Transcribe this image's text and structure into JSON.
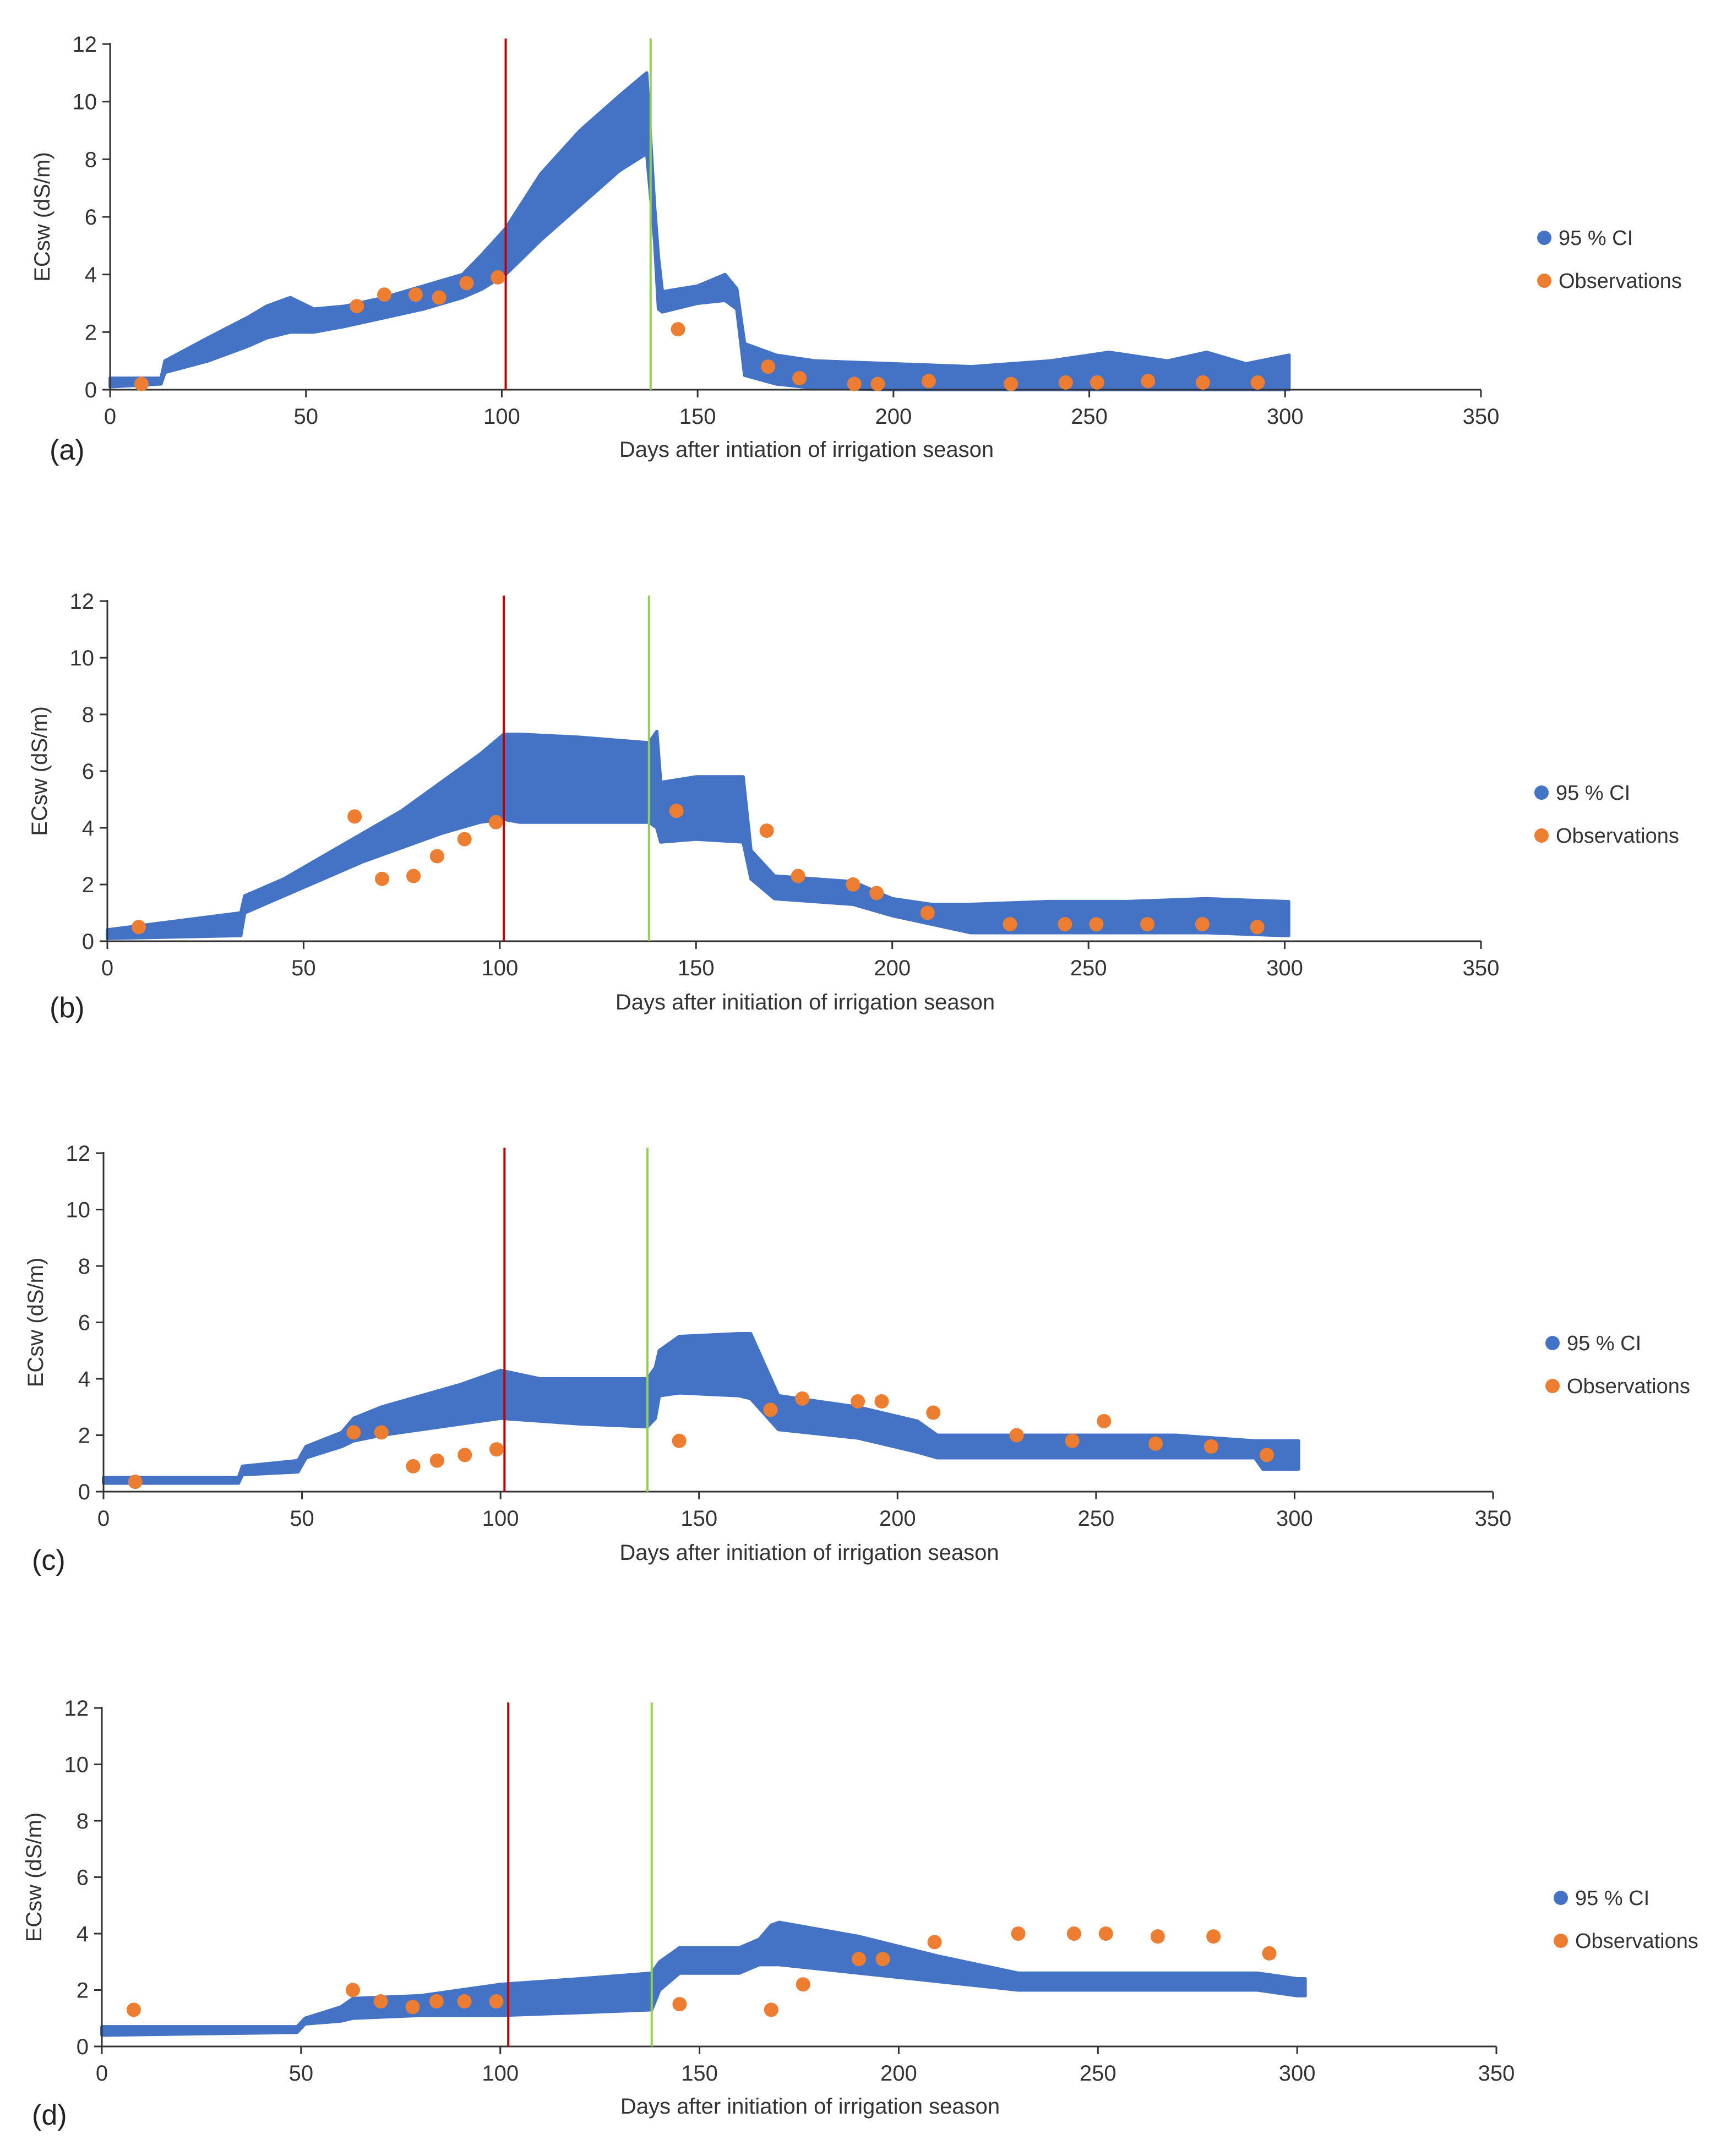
{
  "figure": {
    "x_axis_label": "Days after intiation of irrigation season",
    "x_axis_label_alt": "Days after initiation of irrigation season",
    "y_axis_label": "ECsw (dS/m)",
    "legend": {
      "ci": "95 % CI",
      "obs": "Observations"
    },
    "colors": {
      "band": "#4472C4",
      "obs": "#ED7D31",
      "red_line": "#C00000",
      "green_line": "#92D050",
      "axis": "#333333"
    }
  },
  "chart_data": [
    {
      "type": "area",
      "panel_label": "(a)",
      "xlabel": "Days after intiation of irrigation season",
      "ylabel": "ECsw (dS/m)",
      "xlim": [
        0,
        350
      ],
      "ylim": [
        0,
        12
      ],
      "xticks": [
        "0",
        "50",
        "100",
        "150",
        "200",
        "250",
        "300",
        "350"
      ],
      "yticks": [
        "0",
        "2",
        "4",
        "6",
        "8",
        "10",
        "12"
      ],
      "vlines": {
        "red": 101,
        "green": 138
      },
      "series": [
        {
          "name": "95 % CI",
          "x": [
            0,
            13,
            14,
            25,
            35,
            40,
            46,
            52,
            60,
            70,
            80,
            90,
            95,
            101,
            110,
            120,
            130,
            137,
            139,
            140,
            141,
            150,
            157,
            160,
            162,
            170,
            180,
            200,
            220,
            240,
            255,
            270,
            280,
            290,
            301
          ],
          "lower": [
            0.1,
            0.2,
            0.6,
            1.0,
            1.5,
            1.8,
            2.0,
            2.0,
            2.2,
            2.5,
            2.8,
            3.2,
            3.5,
            4.0,
            5.2,
            6.4,
            7.6,
            8.2,
            5.2,
            2.8,
            2.7,
            3.0,
            3.1,
            2.8,
            0.5,
            0.2,
            0.05,
            0.0,
            0.0,
            0.0,
            0.0,
            0.0,
            0.0,
            0.0,
            0.0
          ],
          "upper": [
            0.4,
            0.4,
            1.0,
            1.8,
            2.5,
            2.9,
            3.2,
            2.8,
            2.9,
            3.2,
            3.6,
            4.0,
            4.7,
            5.6,
            7.5,
            9.0,
            10.2,
            11.0,
            6.4,
            4.6,
            3.4,
            3.6,
            4.0,
            3.5,
            1.6,
            1.2,
            1.0,
            0.9,
            0.8,
            1.0,
            1.3,
            1.0,
            1.3,
            0.9,
            1.2
          ]
        },
        {
          "name": "Observations",
          "x": [
            8,
            63,
            70,
            78,
            84,
            91,
            99,
            145,
            168,
            176,
            190,
            196,
            209,
            230,
            244,
            252,
            265,
            279,
            293
          ],
          "y": [
            0.2,
            2.9,
            3.3,
            3.3,
            3.2,
            3.7,
            3.9,
            2.1,
            0.8,
            0.4,
            0.2,
            0.2,
            0.3,
            0.2,
            0.25,
            0.25,
            0.3,
            0.25,
            0.25
          ]
        }
      ]
    },
    {
      "type": "area",
      "panel_label": "(b)",
      "xlabel": "Days after initiation of irrigation season",
      "ylabel": "ECsw (dS/m)",
      "xlim": [
        0,
        350
      ],
      "ylim": [
        0,
        12
      ],
      "xticks": [
        "0",
        "50",
        "100",
        "150",
        "200",
        "250",
        "300",
        "350"
      ],
      "yticks": [
        "0",
        "2",
        "4",
        "6",
        "8",
        "10",
        "12"
      ],
      "vlines": {
        "red": 101,
        "green": 138
      },
      "series": [
        {
          "name": "95 % CI",
          "x": [
            0,
            34,
            35,
            45,
            55,
            65,
            75,
            85,
            95,
            101,
            105,
            120,
            138,
            140,
            141,
            150,
            162,
            164,
            170,
            190,
            200,
            210,
            220,
            240,
            260,
            280,
            300,
            301
          ],
          "lower": [
            0.1,
            0.2,
            1.0,
            1.6,
            2.2,
            2.8,
            3.3,
            3.8,
            4.2,
            4.3,
            4.2,
            4.2,
            4.2,
            4.0,
            3.5,
            3.6,
            3.5,
            2.2,
            1.5,
            1.3,
            0.9,
            0.6,
            0.3,
            0.3,
            0.3,
            0.3,
            0.2,
            0.2
          ],
          "upper": [
            0.4,
            1.0,
            1.6,
            2.2,
            3.0,
            3.8,
            4.6,
            5.6,
            6.6,
            7.3,
            7.3,
            7.2,
            7.0,
            7.4,
            5.6,
            5.8,
            5.8,
            3.2,
            2.3,
            2.1,
            1.5,
            1.3,
            1.3,
            1.4,
            1.4,
            1.5,
            1.4,
            1.4
          ]
        },
        {
          "name": "Observations",
          "x": [
            8,
            63,
            70,
            78,
            84,
            91,
            99,
            145,
            168,
            176,
            190,
            196,
            209,
            230,
            244,
            252,
            265,
            279,
            293
          ],
          "y": [
            0.5,
            4.4,
            2.2,
            2.3,
            3.0,
            3.6,
            4.2,
            4.6,
            3.9,
            2.3,
            2.0,
            1.7,
            1.0,
            0.6,
            0.6,
            0.6,
            0.6,
            0.6,
            0.5
          ]
        }
      ]
    },
    {
      "type": "area",
      "panel_label": "(c)",
      "xlabel": "Days after initiation of irrigation season",
      "ylabel": "ECsw (dS/m)",
      "xlim": [
        0,
        350
      ],
      "ylim": [
        0,
        12
      ],
      "xticks": [
        "0",
        "50",
        "100",
        "150",
        "200",
        "250",
        "300",
        "350"
      ],
      "yticks": [
        "0",
        "2",
        "4",
        "6",
        "8",
        "10",
        "12"
      ],
      "vlines": {
        "red": 101,
        "green": 137
      },
      "series": [
        {
          "name": "95 % CI",
          "x": [
            0,
            34,
            35,
            49,
            51,
            60,
            63,
            70,
            80,
            90,
            100,
            110,
            120,
            137,
            139,
            140,
            145,
            160,
            163,
            170,
            190,
            205,
            210,
            240,
            270,
            290,
            292,
            301
          ],
          "lower": [
            0.3,
            0.3,
            0.6,
            0.7,
            1.2,
            1.6,
            1.8,
            2.0,
            2.2,
            2.4,
            2.6,
            2.5,
            2.4,
            2.3,
            2.6,
            3.4,
            3.5,
            3.4,
            3.3,
            2.2,
            1.9,
            1.4,
            1.2,
            1.2,
            1.2,
            1.2,
            0.8,
            0.8
          ],
          "upper": [
            0.5,
            0.5,
            0.9,
            1.1,
            1.6,
            2.1,
            2.6,
            3.0,
            3.4,
            3.8,
            4.3,
            4.0,
            4.0,
            4.0,
            4.4,
            5.0,
            5.5,
            5.6,
            5.6,
            3.4,
            3.0,
            2.5,
            2.0,
            2.0,
            2.0,
            1.8,
            1.8,
            1.8
          ]
        },
        {
          "name": "Observations",
          "x": [
            8,
            63,
            70,
            78,
            84,
            91,
            99,
            145,
            168,
            176,
            190,
            196,
            209,
            230,
            244,
            252,
            265,
            279,
            293
          ],
          "y": [
            0.35,
            2.1,
            2.1,
            0.9,
            1.1,
            1.3,
            1.5,
            1.8,
            2.9,
            3.3,
            3.2,
            3.2,
            2.8,
            2.0,
            1.8,
            2.5,
            1.7,
            1.6,
            1.3
          ]
        }
      ]
    },
    {
      "type": "area",
      "panel_label": "(d)",
      "xlabel": "Days after initiation of irrigation season",
      "ylabel": "ECsw (dS/m)",
      "xlim": [
        0,
        350
      ],
      "ylim": [
        0,
        12
      ],
      "xticks": [
        "0",
        "50",
        "100",
        "150",
        "200",
        "250",
        "300",
        "350"
      ],
      "yticks": [
        "0",
        "2",
        "4",
        "6",
        "8",
        "10",
        "12"
      ],
      "vlines": {
        "red": 102,
        "green": 138
      },
      "series": [
        {
          "name": "95 % CI",
          "x": [
            0,
            49,
            51,
            60,
            63,
            80,
            100,
            120,
            138,
            140,
            145,
            160,
            165,
            168,
            170,
            190,
            210,
            230,
            260,
            290,
            300,
            302
          ],
          "lower": [
            0.4,
            0.5,
            0.8,
            0.9,
            1.0,
            1.1,
            1.1,
            1.2,
            1.3,
            2.0,
            2.6,
            2.6,
            2.9,
            2.9,
            2.9,
            2.6,
            2.3,
            2.0,
            2.0,
            2.0,
            1.8,
            1.8
          ],
          "upper": [
            0.7,
            0.7,
            1.0,
            1.4,
            1.7,
            1.8,
            2.2,
            2.4,
            2.6,
            3.0,
            3.5,
            3.5,
            3.8,
            4.3,
            4.4,
            3.9,
            3.2,
            2.6,
            2.6,
            2.6,
            2.4,
            2.4
          ]
        },
        {
          "name": "Observations",
          "x": [
            8,
            63,
            70,
            78,
            84,
            91,
            99,
            145,
            168,
            176,
            190,
            196,
            209,
            230,
            244,
            252,
            265,
            279,
            293
          ],
          "y": [
            1.3,
            2.0,
            1.6,
            1.4,
            1.6,
            1.6,
            1.6,
            1.5,
            1.3,
            2.2,
            3.1,
            3.1,
            3.7,
            4.0,
            4.0,
            4.0,
            3.9,
            3.9,
            3.3
          ]
        }
      ]
    }
  ]
}
